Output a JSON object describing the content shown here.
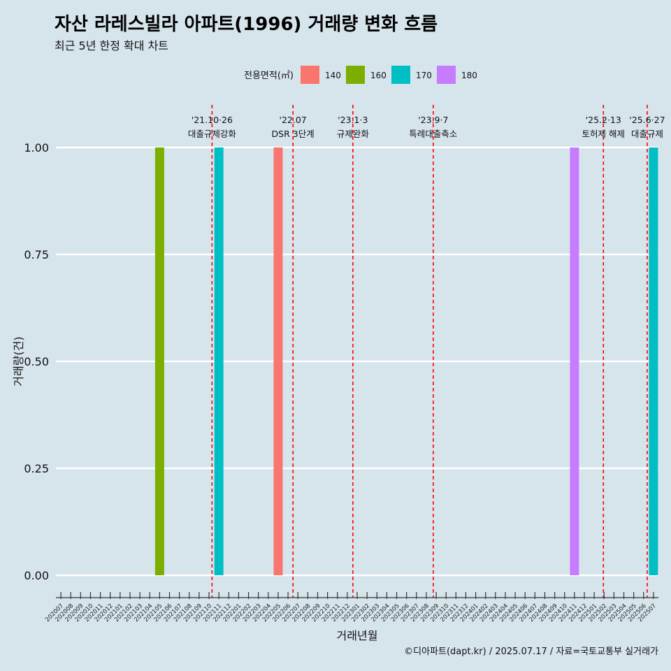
{
  "title": "자산 라레스빌라 아파트(1996) 거래량 변화 흐름",
  "subtitle": "최근 5년 한정 확대 차트",
  "caption": "©디아파트(dapt.kr) / 2025.07.17 / 자료=국토교통부 실거래가",
  "colors": {
    "background": "#d6e4ec",
    "grid": "#ffffff",
    "event_line": "#ff0000",
    "series_140": "#F8766D",
    "series_160": "#7CAE00",
    "series_170": "#00BFC4",
    "series_180": "#C77CFF"
  },
  "chart_data": {
    "type": "bar",
    "xlabel": "거래년월",
    "ylabel": "거래량(건)",
    "ylim": [
      0,
      1
    ],
    "yticks": [
      "0.00",
      "0.25",
      "0.50",
      "0.75",
      "1.00"
    ],
    "grid": true,
    "legend": {
      "title": "전용면적(㎡)",
      "position": "top",
      "entries": [
        "140",
        "160",
        "170",
        "180"
      ]
    },
    "categories": [
      "202007",
      "202008",
      "202009",
      "202010",
      "202011",
      "202012",
      "202101",
      "202102",
      "202103",
      "202104",
      "202105",
      "202106",
      "202107",
      "202108",
      "202109",
      "202110",
      "202111",
      "202112",
      "202201",
      "202202",
      "202203",
      "202204",
      "202205",
      "202206",
      "202207",
      "202208",
      "202209",
      "202210",
      "202211",
      "202212",
      "202301",
      "202302",
      "202303",
      "202304",
      "202305",
      "202306",
      "202307",
      "202308",
      "202309",
      "202310",
      "202311",
      "202312",
      "202401",
      "202402",
      "202403",
      "202404",
      "202405",
      "202406",
      "202407",
      "202408",
      "202409",
      "202410",
      "202411",
      "202412",
      "202501",
      "202502",
      "202503",
      "202504",
      "202505",
      "202506",
      "202507"
    ],
    "series": [
      {
        "name": "140",
        "points": [
          {
            "x": "202205",
            "y": 1
          }
        ]
      },
      {
        "name": "160",
        "points": [
          {
            "x": "202105",
            "y": 1
          }
        ]
      },
      {
        "name": "170",
        "points": [
          {
            "x": "202111",
            "y": 1
          },
          {
            "x": "202507",
            "y": 1
          }
        ]
      },
      {
        "name": "180",
        "points": [
          {
            "x": "202411",
            "y": 1
          }
        ]
      }
    ],
    "annotations": [
      {
        "date_label": "'21.10·26",
        "text": "대출규제강화",
        "x": "2021-10-26"
      },
      {
        "date_label": "'22.07",
        "text": "DSR 3단계",
        "x": "2022-07-01"
      },
      {
        "date_label": "'23.1·3",
        "text": "규제완화",
        "x": "2023-01-03"
      },
      {
        "date_label": "'23.9·7",
        "text": "특례대출축소",
        "x": "2023-09-07"
      },
      {
        "date_label": "'25.2·13",
        "text": "토허제 해제",
        "x": "2025-02-13"
      },
      {
        "date_label": "'25.6·27",
        "text": "대출규제",
        "x": "2025-06-27"
      }
    ]
  }
}
